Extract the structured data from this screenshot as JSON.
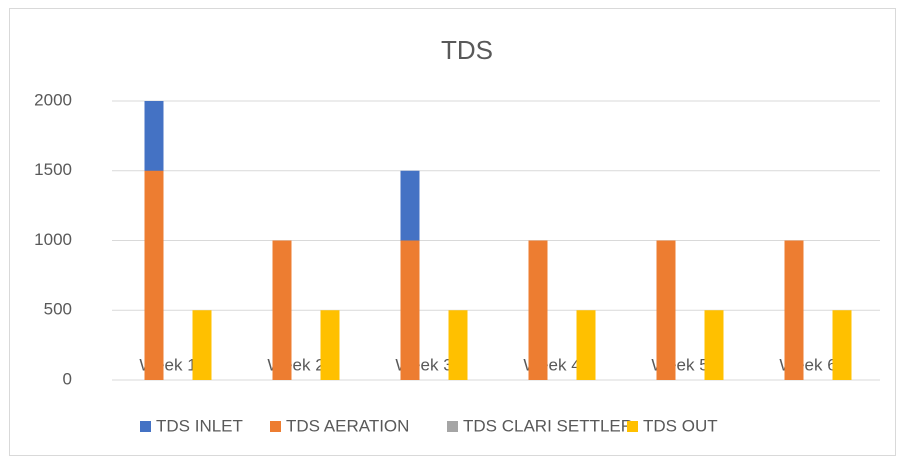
{
  "chart_data": {
    "type": "bar",
    "title": "TDS",
    "categories": [
      "Week 1",
      "Week 2",
      "Week 3",
      "Week 4",
      "Week 5",
      "Week 6"
    ],
    "series": [
      {
        "name": "TDS INLET",
        "color": "#4472c4",
        "values": [
          2000,
          null,
          1500,
          null,
          null,
          null
        ]
      },
      {
        "name": "TDS AERATION",
        "color": "#ed7d31",
        "values": [
          1500,
          1000,
          1000,
          1000,
          1000,
          1000
        ]
      },
      {
        "name": "TDS CLARI SETTLER",
        "color": "#a5a5a5",
        "values": [
          null,
          null,
          null,
          null,
          null,
          null
        ]
      },
      {
        "name": "TDS OUT",
        "color": "#ffc000",
        "values": [
          500,
          500,
          500,
          500,
          500,
          500
        ]
      }
    ],
    "ylim": [
      0,
      2000
    ],
    "yticks": [
      0,
      500,
      1000,
      1500,
      2000
    ],
    "grid": true,
    "legend": "bottom"
  }
}
